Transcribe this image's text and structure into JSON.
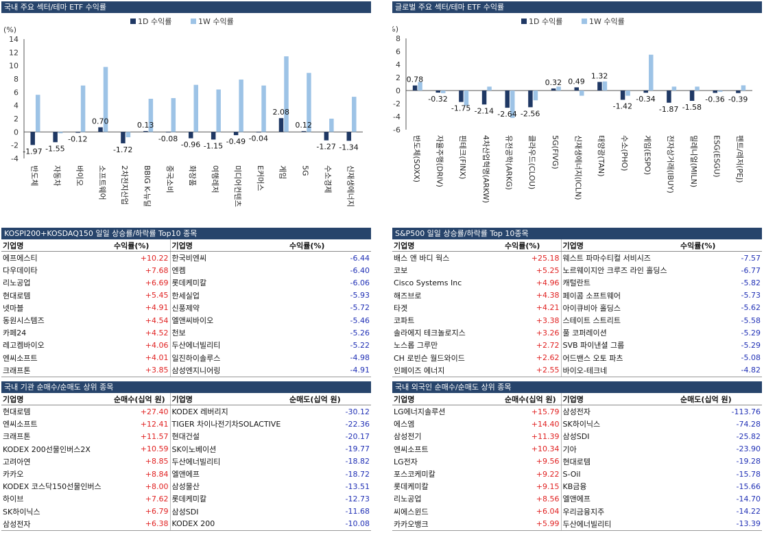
{
  "colors": {
    "header_bg": "#27446b",
    "d1": "#1f3864",
    "w1": "#9dc3e6",
    "positive": "#e02020",
    "negative": "#1f2fb5"
  },
  "chart_data": [
    {
      "type": "bar",
      "title": "국내 주요 섹터/테마 ETF 수익률",
      "ylabel": "(%)",
      "ylim": [
        -4,
        14
      ],
      "yticks": [
        -4,
        -2,
        0,
        2,
        4,
        6,
        8,
        10,
        12,
        14
      ],
      "categories": [
        "반도체",
        "자동차",
        "바이오",
        "소프트웨어",
        "2차전지산업",
        "BBIG K-뉴딜",
        "중국소비",
        "화장품",
        "여행레저",
        "미디어컨텐츠",
        "E커머스",
        "게임",
        "5G",
        "수소경제",
        "신재생에너지"
      ],
      "series": [
        {
          "name": "1D 수익률",
          "values": [
            -1.97,
            -1.55,
            -0.12,
            0.7,
            -1.72,
            0.13,
            -0.08,
            -0.96,
            -1.15,
            -0.49,
            -0.04,
            2.08,
            0.12,
            -1.27,
            -1.34
          ]
        },
        {
          "name": "1W 수익률",
          "values": [
            5.6,
            -0.2,
            7.0,
            9.8,
            -0.8,
            5.0,
            5.1,
            7.1,
            6.4,
            7.9,
            7.0,
            11.4,
            8.9,
            2.0,
            5.3
          ]
        }
      ],
      "data_labels": [
        "-1.97",
        "-1.55",
        "-0.12",
        "0.70",
        "-1.72",
        "0.13",
        "-0.08",
        "-0.96",
        "-1.15",
        "-0.49",
        "-0.04",
        "2.08",
        "0.12",
        "-1.27",
        "-1.34"
      ],
      "legend": "top-center"
    },
    {
      "type": "bar",
      "title": "글로벌 주요 섹터/테마 ETF 수익률",
      "ylabel": "(%)",
      "ylim": [
        -6,
        8
      ],
      "yticks": [
        -6,
        -4,
        -2,
        0,
        2,
        4,
        6,
        8
      ],
      "categories": [
        "반도체(SOXX)",
        "자율주행(DRIV)",
        "핀테크(FINX)",
        "4차산업혁명(ARKW)",
        "유전공학(ARKG)",
        "클라우드(CLOU)",
        "5G(FIVG)",
        "신재생에너지(ICLN)",
        "태양광(TAN)",
        "수소(PHO)",
        "게임(ESPO)",
        "전자상거래(IBUY)",
        "밀레니얼(MILN)",
        "ESG(ESGU)",
        "펜트/레저(PEJ)"
      ],
      "series": [
        {
          "name": "1D 수익률",
          "values": [
            0.78,
            -0.32,
            -1.75,
            -2.14,
            -2.64,
            -2.56,
            0.32,
            0.49,
            1.32,
            -1.42,
            -0.34,
            -1.87,
            -1.58,
            -0.36,
            -0.39
          ]
        },
        {
          "name": "1W 수익률",
          "values": [
            1.3,
            -0.4,
            -2.3,
            0.6,
            -4.2,
            -1.5,
            0.6,
            -0.8,
            1.4,
            -0.8,
            5.5,
            0.6,
            0.6,
            -0.2,
            0.8
          ]
        }
      ],
      "data_labels": [
        "0.78",
        "-0.32",
        "-1.75",
        "-2.14",
        "-2.64",
        "-2.56",
        "0.32",
        "0.49",
        "1.32",
        "-1.42",
        "-0.34",
        "-1.87",
        "-1.58",
        "-0.36",
        "-0.39"
      ],
      "legend": "top-center"
    }
  ],
  "tables": {
    "kr_top10": {
      "title": "KOSPI200+KOSDAQ150 일일 상승률/하락률 Top10 종목",
      "headers": [
        "기업명",
        "수익률(%)",
        "기업명",
        "수익률(%)"
      ],
      "rows": [
        [
          "에프에스티",
          "+10.22",
          "한국비엔씨",
          "-6.44"
        ],
        [
          "다우데이타",
          "+7.68",
          "엔켐",
          "-6.40"
        ],
        [
          "리노공업",
          "+6.69",
          "롯데케미칼",
          "-6.06"
        ],
        [
          "현대로템",
          "+5.45",
          "한세실업",
          "-5.93"
        ],
        [
          "넷마블",
          "+4.91",
          "신풍제약",
          "-5.72"
        ],
        [
          "동원시스템즈",
          "+4.54",
          "엘앤씨바이오",
          "-5.46"
        ],
        [
          "카페24",
          "+4.52",
          "천보",
          "-5.26"
        ],
        [
          "레고켐바이오",
          "+4.06",
          "두산에너빌리티",
          "-5.22"
        ],
        [
          "엔씨소프트",
          "+4.01",
          "일진하이솔루스",
          "-4.98"
        ],
        [
          "크래프톤",
          "+3.85",
          "삼성엔지니어링",
          "-4.91"
        ]
      ]
    },
    "us_top10": {
      "title": "S&P500 일일 상승률/하락률 Top 10종목",
      "headers": [
        "기업명",
        "수익률(%)",
        "기업명",
        "수익률(%)"
      ],
      "rows": [
        [
          "배스 앤 바디 웍스",
          "+25.18",
          "웨스트 파마수티컬 서비시즈",
          "-7.57"
        ],
        [
          "코보",
          "+5.25",
          "노르웨이지안 크루즈 라인 홀딩스",
          "-6.77"
        ],
        [
          "Cisco Systems Inc",
          "+4.96",
          "캐털란트",
          "-5.82"
        ],
        [
          "해즈브로",
          "+4.38",
          "페이콤 소프트웨어",
          "-5.73"
        ],
        [
          "타겟",
          "+4.21",
          "아이큐비아 홀딩스",
          "-5.62"
        ],
        [
          "코파트",
          "+3.38",
          "스테이트 스트리트",
          "-5.58"
        ],
        [
          "솔라에지 테크놀로지스",
          "+3.26",
          "풀 코퍼레이션",
          "-5.29"
        ],
        [
          "노스롭 그루만",
          "+2.72",
          "SVB 파이낸셜 그룹",
          "-5.29"
        ],
        [
          "CH 로빈슨 월드와이드",
          "+2.62",
          "어드밴스 오토 파츠",
          "-5.08"
        ],
        [
          "인페이즈 에너지",
          "+2.55",
          "바이오-테크네",
          "-4.82"
        ]
      ]
    },
    "kr_inst": {
      "title": "국내 기관 순매수/순매도 상위 종목",
      "headers": [
        "기업명",
        "순매수(십억 원)",
        "기업명",
        "순매도(십억 원)"
      ],
      "rows": [
        [
          "현대로템",
          "+27.40",
          "KODEX 레버리지",
          "-30.12"
        ],
        [
          "엔씨소프트",
          "+12.41",
          "TIGER 차이나전기차SOLACTIVE",
          "-22.36"
        ],
        [
          "크래프톤",
          "+11.57",
          "현대건설",
          "-20.17"
        ],
        [
          "KODEX 200선물인버스2X",
          "+10.59",
          "SK이노베이션",
          "-19.77"
        ],
        [
          "고려아연",
          "+8.85",
          "두산에너빌리티",
          "-18.82"
        ],
        [
          "카카오",
          "+8.84",
          "엘앤에프",
          "-18.72"
        ],
        [
          "KODEX 코스닥150선물인버스",
          "+8.00",
          "삼성물산",
          "-13.51"
        ],
        [
          "하이브",
          "+7.62",
          "롯데케미칼",
          "-12.73"
        ],
        [
          "SK하이닉스",
          "+6.79",
          "삼성SDI",
          "-11.68"
        ],
        [
          "삼성전자",
          "+6.38",
          "KODEX 200",
          "-10.08"
        ]
      ]
    },
    "kr_foreign": {
      "title": "국내 외국인 순매수/순매도 상위 종목",
      "headers": [
        "기업명",
        "순매수(십억 원)",
        "기업명",
        "순매도(십억 원)"
      ],
      "rows": [
        [
          "LG에너지솔루션",
          "+15.79",
          "삼성전자",
          "-113.76"
        ],
        [
          "에스엠",
          "+14.40",
          "SK하이닉스",
          "-74.28"
        ],
        [
          "삼성전기",
          "+11.39",
          "삼성SDI",
          "-25.82"
        ],
        [
          "엔씨소프트",
          "+10.34",
          "기아",
          "-23.90"
        ],
        [
          "LG전자",
          "+9.56",
          "현대로템",
          "-19.28"
        ],
        [
          "포스코케미칼",
          "+9.22",
          "S-Oil",
          "-15.78"
        ],
        [
          "롯데케미칼",
          "+9.15",
          "KB금융",
          "-15.66"
        ],
        [
          "리노공업",
          "+8.56",
          "엘앤에프",
          "-14.70"
        ],
        [
          "씨에스윈드",
          "+6.04",
          "우리금융지주",
          "-14.22"
        ],
        [
          "카카오뱅크",
          "+5.99",
          "두산에너빌리티",
          "-13.39"
        ]
      ]
    }
  }
}
